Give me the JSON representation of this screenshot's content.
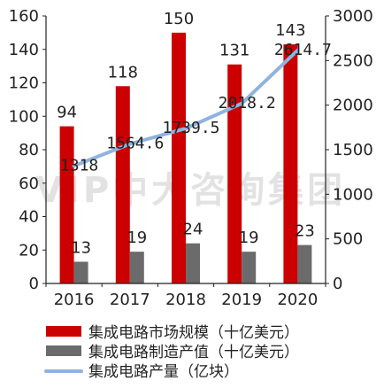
{
  "chart_data": {
    "type": "bar",
    "categories": [
      "2016",
      "2017",
      "2018",
      "2019",
      "2020"
    ],
    "y_left": {
      "ylim": [
        0,
        160
      ],
      "ticks": [
        0,
        20,
        40,
        60,
        80,
        100,
        120,
        140,
        160
      ]
    },
    "y_right": {
      "ylim": [
        0,
        3000
      ],
      "ticks": [
        0,
        500,
        1000,
        1500,
        2000,
        2500,
        3000
      ]
    },
    "series": [
      {
        "name": "集成电路市场规模（十亿美元）",
        "kind": "bar",
        "axis": "left",
        "color": "#cc0000",
        "values": [
          94,
          118,
          150,
          131,
          143
        ],
        "labels": [
          "94",
          "118",
          "150",
          "131",
          "143"
        ]
      },
      {
        "name": "集成电路制造产值（十亿美元）",
        "kind": "bar",
        "axis": "left",
        "color": "#6b6b6b",
        "values": [
          13,
          19,
          24,
          19,
          23
        ],
        "labels": [
          "13",
          "19",
          "24",
          "19",
          "23"
        ]
      },
      {
        "name": "集成电路产量（亿块）",
        "kind": "line",
        "axis": "right",
        "color": "#8fb3e0",
        "values": [
          1318,
          1564.6,
          1739.5,
          2018.2,
          2614.7
        ],
        "labels": [
          "1318",
          "1564.6",
          "1739.5",
          "2018.2",
          "2614.7"
        ]
      }
    ],
    "watermark": "VIP中大咨询集团",
    "legend_position": "bottom",
    "grid": false
  }
}
